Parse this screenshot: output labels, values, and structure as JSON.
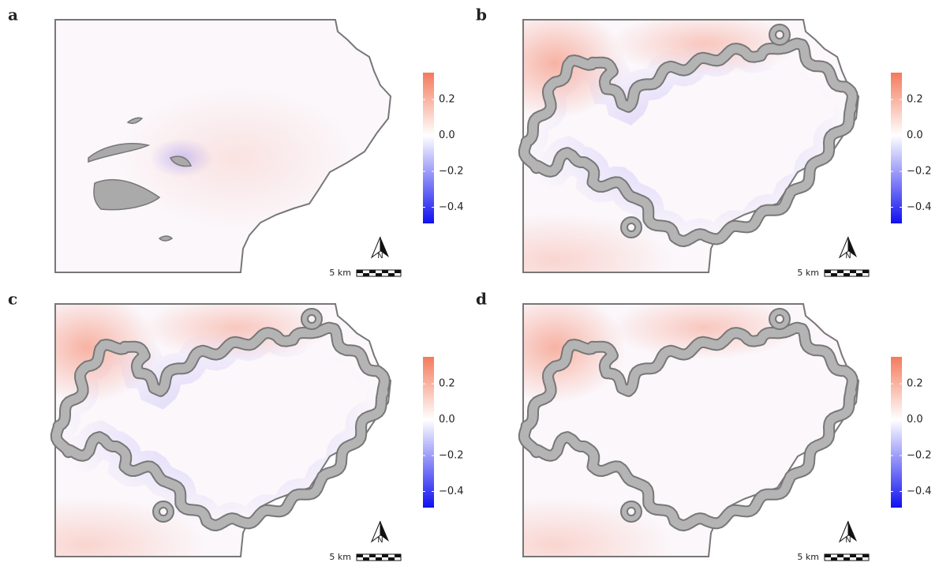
{
  "panels": [
    {
      "label": "a"
    },
    {
      "label": "b"
    },
    {
      "label": "c"
    },
    {
      "label": "d"
    }
  ],
  "colorbar": {
    "lim": [
      -0.49,
      0.35
    ],
    "ticks": [
      0.2,
      {
        "value": 0,
        "label": "0.0"
      },
      {
        "value": -0.2,
        "label": "−0.2"
      },
      {
        "value": -0.4,
        "label": "−0.4"
      }
    ],
    "colors": {
      "high": "#f47a5c",
      "mid": "#ffffff",
      "low": "#1010f0"
    }
  },
  "north_label": "N",
  "scale_label": "5 km"
}
